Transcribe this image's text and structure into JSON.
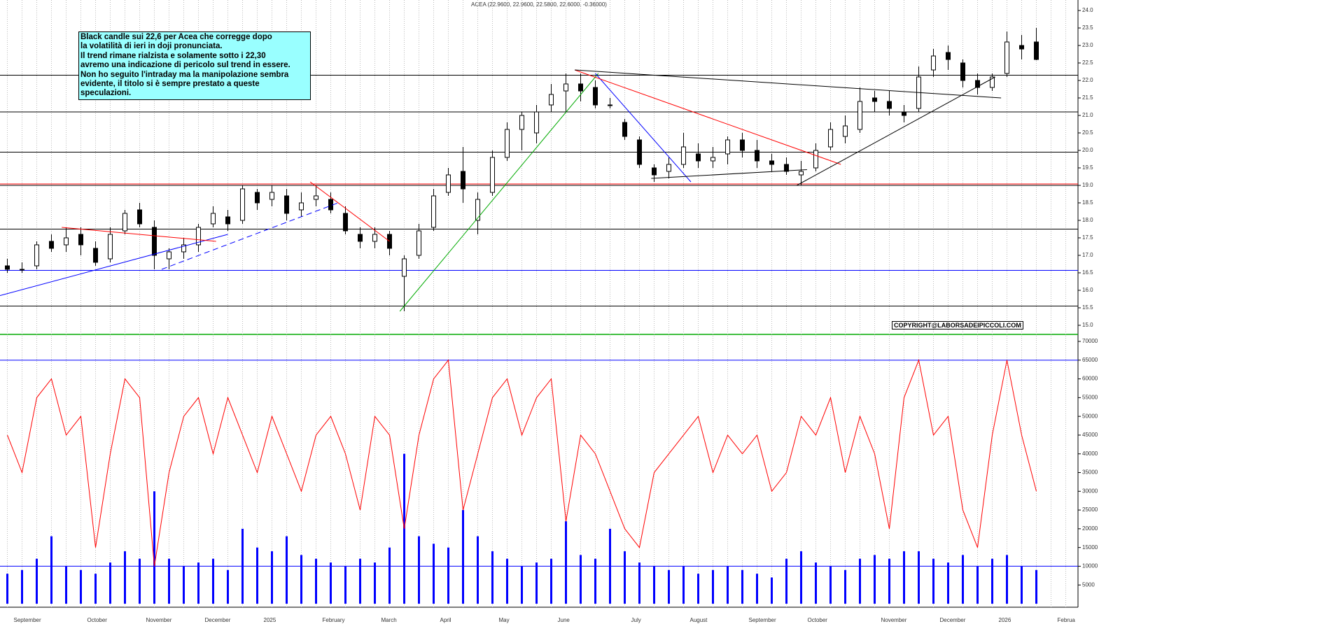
{
  "chart_data": [
    {
      "type": "candlestick",
      "title": "ACEA (22.9600, 22.9600, 22.5800, 22.6000, -0.36000)",
      "categories": [
        null,
        "September",
        null,
        null,
        null,
        null,
        "October",
        null,
        null,
        null,
        "November",
        null,
        null,
        null,
        "December",
        null,
        null,
        null,
        "2025",
        null,
        null,
        null,
        "February",
        null,
        null,
        null,
        "March",
        null,
        null,
        null,
        "April",
        null,
        null,
        null,
        "May",
        null,
        null,
        null,
        "June",
        null,
        null,
        null,
        null,
        "July",
        null,
        null,
        null,
        "August",
        null,
        null,
        null,
        "September",
        null,
        null,
        null,
        "October",
        null,
        null,
        null,
        null,
        "November",
        null,
        null,
        null,
        "December",
        null,
        null,
        null,
        "2026",
        null,
        null,
        null,
        "Februa"
      ],
      "open": [
        16.7,
        16.6,
        16.7,
        17.4,
        17.3,
        17.6,
        17.2,
        16.9,
        17.7,
        18.3,
        17.8,
        16.9,
        17.1,
        17.3,
        17.9,
        18.1,
        18.0,
        18.8,
        18.6,
        18.7,
        18.3,
        18.6,
        18.6,
        18.2,
        17.6,
        17.4,
        17.6,
        16.4,
        17.0,
        17.8,
        18.8,
        19.4,
        18.0,
        18.8,
        19.8,
        20.6,
        20.5,
        21.3,
        21.7,
        21.9,
        21.8,
        21.3,
        20.8,
        20.3,
        19.5,
        19.4,
        19.6,
        19.9,
        19.7,
        19.9,
        20.3,
        20.0,
        19.7,
        19.6,
        19.3,
        19.5,
        20.1,
        20.4,
        20.6,
        21.5,
        21.4,
        21.1,
        21.2,
        22.3,
        22.8,
        22.5,
        22.0,
        21.8,
        22.2,
        23.0,
        23.1,
        null,
        null
      ],
      "high": [
        16.9,
        16.8,
        17.4,
        17.6,
        17.8,
        17.8,
        17.4,
        17.8,
        18.3,
        18.5,
        18.0,
        17.2,
        17.5,
        17.9,
        18.4,
        18.3,
        19.0,
        18.9,
        19.0,
        18.9,
        18.8,
        19.0,
        18.8,
        18.4,
        17.8,
        17.8,
        17.7,
        17.0,
        17.9,
        18.9,
        19.5,
        20.1,
        18.8,
        20.0,
        20.8,
        21.1,
        21.3,
        21.9,
        22.2,
        22.2,
        22.0,
        21.5,
        20.9,
        20.4,
        19.6,
        19.8,
        20.5,
        20.2,
        20.1,
        20.4,
        20.5,
        20.3,
        19.9,
        19.8,
        19.7,
        20.2,
        20.8,
        21.0,
        21.8,
        21.7,
        21.7,
        21.3,
        22.4,
        22.9,
        23.0,
        22.6,
        22.2,
        22.2,
        23.4,
        23.3,
        23.5,
        null,
        null
      ],
      "low": [
        16.5,
        16.5,
        16.6,
        17.1,
        17.1,
        17.0,
        16.7,
        16.8,
        17.6,
        17.8,
        16.6,
        16.6,
        16.9,
        17.1,
        17.8,
        17.7,
        17.9,
        18.3,
        18.4,
        18.0,
        18.1,
        18.4,
        18.2,
        17.6,
        17.2,
        17.2,
        17.0,
        15.4,
        16.9,
        17.7,
        18.7,
        18.5,
        17.6,
        18.7,
        19.7,
        20.0,
        20.2,
        21.1,
        21.1,
        21.4,
        21.2,
        21.2,
        20.3,
        19.5,
        19.1,
        19.2,
        19.5,
        19.5,
        19.5,
        19.6,
        19.8,
        19.5,
        19.4,
        19.3,
        19.0,
        19.4,
        20.0,
        20.2,
        20.5,
        21.1,
        21.0,
        20.8,
        21.1,
        22.1,
        22.3,
        21.8,
        21.6,
        21.7,
        22.1,
        22.6,
        22.58,
        null,
        null
      ],
      "close": [
        16.6,
        16.6,
        17.3,
        17.2,
        17.5,
        17.3,
        16.8,
        17.6,
        18.2,
        17.9,
        17.0,
        17.1,
        17.3,
        17.8,
        18.2,
        17.9,
        18.9,
        18.5,
        18.8,
        18.2,
        18.5,
        18.7,
        18.3,
        17.7,
        17.4,
        17.6,
        17.2,
        16.9,
        17.7,
        18.7,
        19.3,
        18.9,
        18.6,
        19.8,
        20.6,
        21.0,
        21.1,
        21.6,
        21.9,
        21.7,
        21.3,
        21.3,
        20.4,
        19.6,
        19.3,
        19.6,
        20.1,
        19.7,
        19.8,
        20.3,
        20.0,
        19.7,
        19.6,
        19.4,
        19.4,
        20.0,
        20.6,
        20.7,
        21.4,
        21.4,
        21.2,
        21.0,
        22.1,
        22.7,
        22.6,
        22.0,
        21.8,
        22.1,
        23.1,
        22.9,
        22.6,
        null,
        null
      ],
      "ylim": [
        14.74,
        24.3
      ],
      "yticks": [
        {
          "value": 15,
          "label": "15.0"
        },
        15.5,
        {
          "value": 16,
          "label": "16.0"
        },
        16.5,
        {
          "value": 17,
          "label": "17.0"
        },
        17.5,
        {
          "value": 18,
          "label": "18.0"
        },
        18.5,
        {
          "value": 19,
          "label": "19.0"
        },
        19.5,
        {
          "value": 20,
          "label": "20.0"
        },
        20.5,
        {
          "value": 21,
          "label": "21.0"
        },
        21.5,
        {
          "value": 22,
          "label": "22.0"
        },
        22.5,
        {
          "value": 23,
          "label": "23.0"
        },
        23.5,
        {
          "value": 24,
          "label": "24.0"
        }
      ],
      "hlines": [
        {
          "value": 22.15,
          "color": "#000000"
        },
        {
          "value": 21.1,
          "color": "#000000"
        },
        {
          "value": 19.95,
          "color": "#000000"
        },
        {
          "value": 19.04,
          "color": "#ff0000"
        },
        {
          "value": 19.0,
          "color": "#000000"
        },
        {
          "value": 17.75,
          "color": "#000000"
        },
        {
          "value": 16.57,
          "color": "#0000ff"
        },
        {
          "value": 15.55,
          "color": "#000000"
        }
      ],
      "trendlines": [
        {
          "color": "#0000ff",
          "from": [
            -0.5,
            15.85
          ],
          "to": [
            15,
            17.6
          ]
        },
        {
          "color": "#0000ff",
          "from": [
            10.5,
            16.6
          ],
          "to": [
            22.5,
            18.5
          ],
          "dashed": true
        },
        {
          "color": "#ff0000",
          "from": [
            3.7,
            17.8
          ],
          "to": [
            14.2,
            17.4
          ]
        },
        {
          "color": "#ff0000",
          "from": [
            20.6,
            19.1
          ],
          "to": [
            26,
            17.4
          ]
        },
        {
          "color": "#00aa00",
          "from": [
            26.7,
            15.4
          ],
          "to": [
            40.2,
            22.2
          ]
        },
        {
          "color": "#0000ff",
          "from": [
            40,
            22.2
          ],
          "to": [
            46.5,
            19.1
          ]
        },
        {
          "color": "#ff0000",
          "from": [
            38.6,
            22.3
          ],
          "to": [
            56.7,
            19.6
          ]
        },
        {
          "color": "#000000",
          "from": [
            38.6,
            22.3
          ],
          "to": [
            67.6,
            21.5
          ]
        },
        {
          "color": "#000000",
          "from": [
            43.8,
            19.2
          ],
          "to": [
            54.4,
            19.45
          ]
        },
        {
          "color": "#000000",
          "from": [
            53.7,
            19.0
          ],
          "to": [
            67.2,
            22.1
          ]
        }
      ],
      "up_color": "#ffffff",
      "down_color": "#000000",
      "annotation": [
        "Black candle sui 22,6 per Acea che corregge dopo",
        "la volatilità di ieri in doji pronunciata.",
        "Il trend rimane rialzista  e solamente sotto i 22,30",
        "avremo una indicazione di pericolo sul trend in essere.",
        "Non ho seguito l'intraday ma la manipolazione sembra",
        "evidente, il titolo si è sempre prestato a queste speculazioni."
      ],
      "copyright": "COPYRIGHT@LABORSADEIPICCOLI.COM"
    },
    {
      "type": "bar-line",
      "series": [
        {
          "type": "bar",
          "color": "#0000ff",
          "values": [
            8000,
            9000,
            12000,
            18000,
            10000,
            9000,
            8000,
            11000,
            14000,
            12000,
            30000,
            12000,
            10000,
            11000,
            12000,
            9000,
            20000,
            15000,
            14000,
            18000,
            13000,
            12000,
            11000,
            10000,
            12000,
            11000,
            15000,
            40000,
            18000,
            16000,
            15000,
            25000,
            18000,
            14000,
            12000,
            10000,
            11000,
            12000,
            22000,
            13000,
            12000,
            20000,
            14000,
            11000,
            10000,
            9000,
            10000,
            8000,
            9000,
            10000,
            9000,
            8000,
            7000,
            12000,
            14000,
            11000,
            10000,
            9000,
            12000,
            13000,
            12000,
            14000,
            14000,
            12000,
            11000,
            13000,
            10000,
            12000,
            13000,
            10000,
            9000,
            null,
            null
          ]
        },
        {
          "type": "line",
          "color": "#ff0000",
          "values": [
            45000,
            35000,
            55000,
            60000,
            45000,
            50000,
            15000,
            40000,
            60000,
            55000,
            10000,
            35000,
            50000,
            55000,
            40000,
            55000,
            45000,
            35000,
            50000,
            40000,
            30000,
            45000,
            50000,
            40000,
            25000,
            50000,
            45000,
            20000,
            45000,
            60000,
            65000,
            25000,
            40000,
            55000,
            60000,
            45000,
            55000,
            60000,
            22000,
            45000,
            40000,
            30000,
            20000,
            15000,
            35000,
            40000,
            45000,
            50000,
            35000,
            45000,
            40000,
            45000,
            30000,
            35000,
            50000,
            45000,
            55000,
            35000,
            50000,
            40000,
            20000,
            55000,
            65000,
            45000,
            50000,
            25000,
            15000,
            45000,
            65000,
            45000,
            30000,
            null,
            null
          ]
        }
      ],
      "ylim": [
        0,
        71500
      ],
      "yticks": [
        5000,
        10000,
        15000,
        20000,
        25000,
        30000,
        35000,
        40000,
        45000,
        50000,
        55000,
        60000,
        65000,
        70000
      ],
      "hlines": [
        {
          "value": 65000,
          "color": "#0000ff"
        },
        {
          "value": 10000,
          "color": "#0000ff"
        }
      ]
    }
  ]
}
